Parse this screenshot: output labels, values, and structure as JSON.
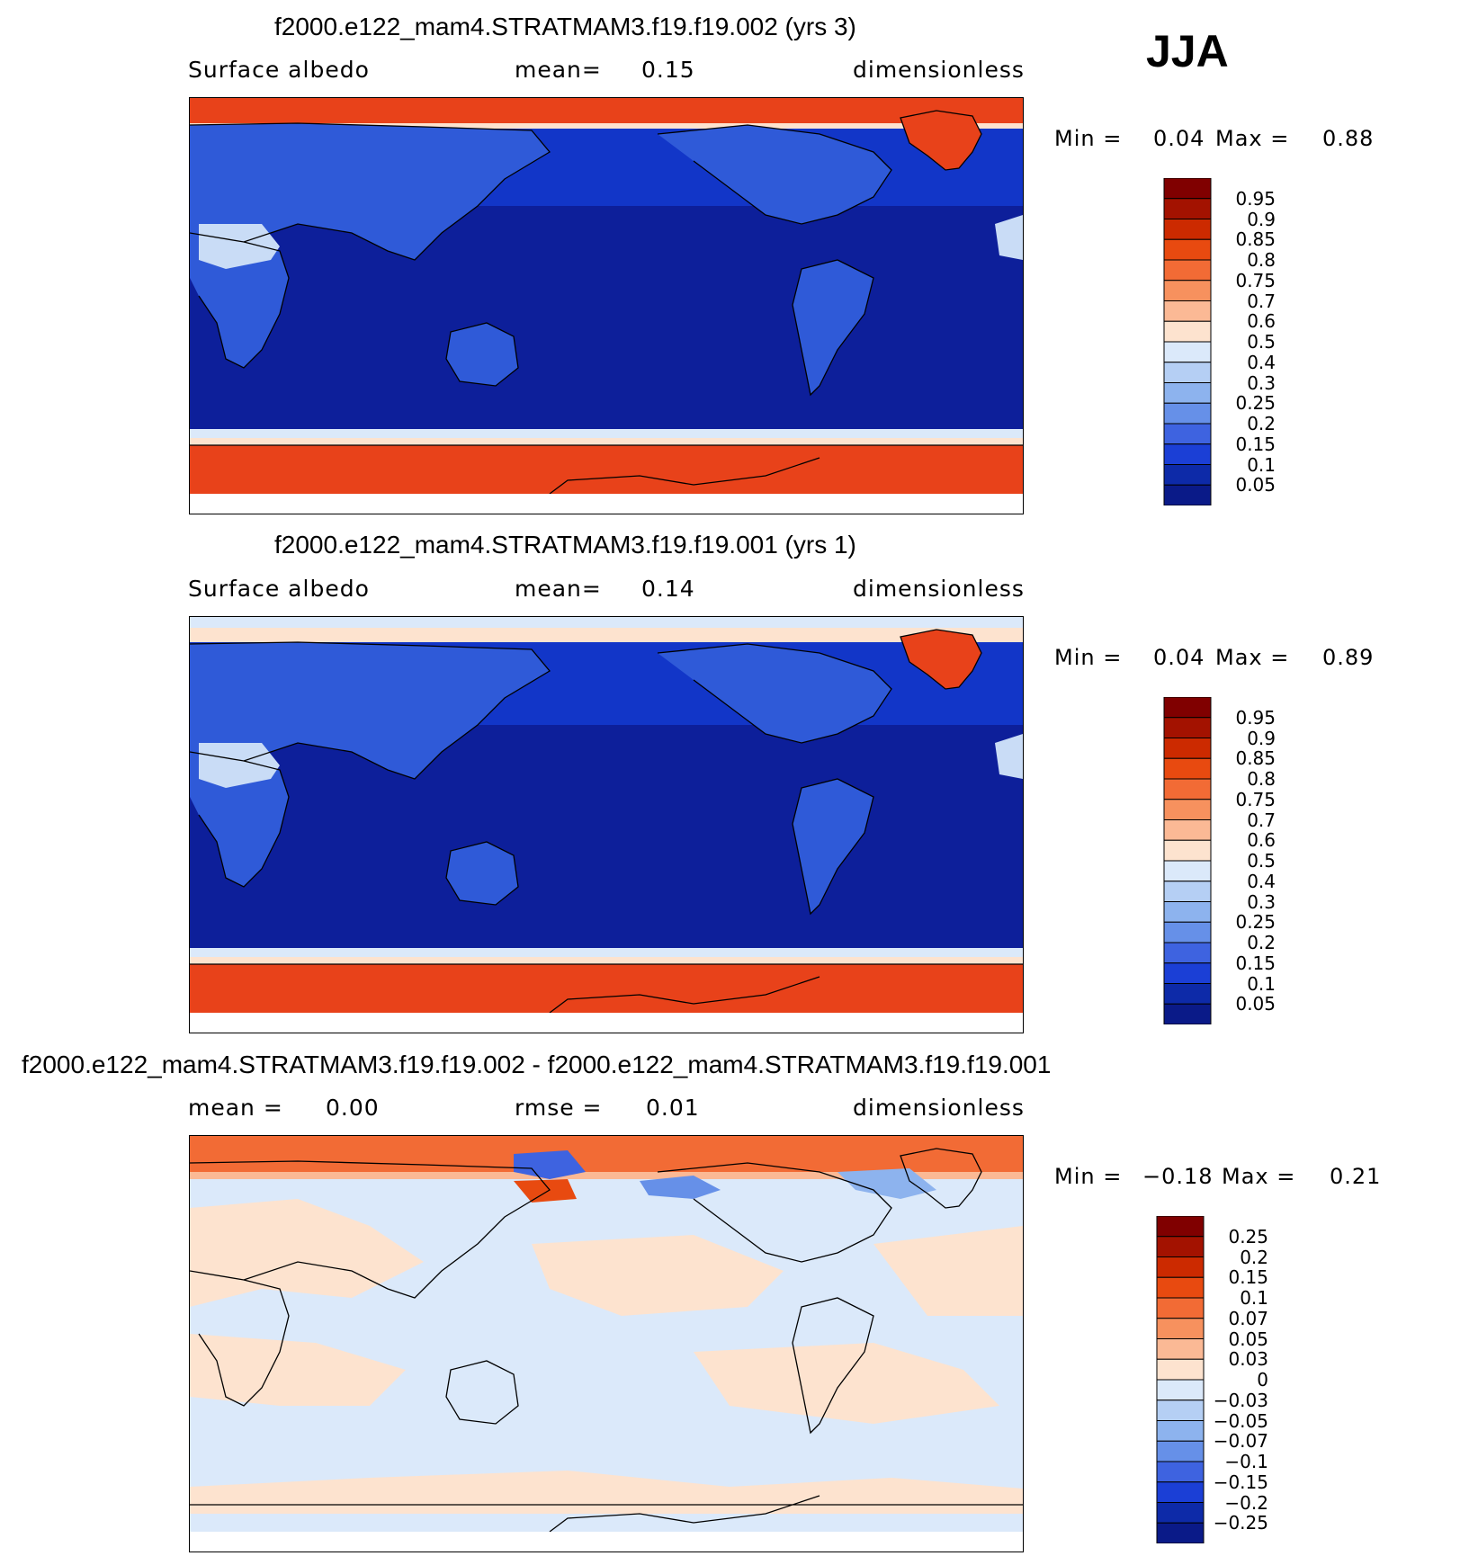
{
  "season": "JJA",
  "panels": [
    {
      "id": "p1",
      "title": "f2000.e122_mam4.STRATMAM3.f19.f19.002 (yrs 3)",
      "left_label": "Surface albedo",
      "center_label": "mean=",
      "center_value": "0.15",
      "right_label": "dimensionless",
      "min_label": "Min =",
      "min_value": "0.04",
      "max_label": "Max =",
      "max_value": "0.88",
      "colorbar_labels": [
        "0.95",
        "0.9",
        "0.85",
        "0.8",
        "0.75",
        "0.7",
        "0.6",
        "0.5",
        "0.4",
        "0.3",
        "0.25",
        "0.2",
        "0.15",
        "0.1",
        "0.05"
      ]
    },
    {
      "id": "p2",
      "title": "f2000.e122_mam4.STRATMAM3.f19.f19.001 (yrs 1)",
      "left_label": "Surface albedo",
      "center_label": "mean=",
      "center_value": "0.14",
      "right_label": "dimensionless",
      "min_label": "Min =",
      "min_value": "0.04",
      "max_label": "Max =",
      "max_value": "0.89",
      "colorbar_labels": [
        "0.95",
        "0.9",
        "0.85",
        "0.8",
        "0.75",
        "0.7",
        "0.6",
        "0.5",
        "0.4",
        "0.3",
        "0.25",
        "0.2",
        "0.15",
        "0.1",
        "0.05"
      ]
    },
    {
      "id": "p3",
      "title": "f2000.e122_mam4.STRATMAM3.f19.f19.002 - f2000.e122_mam4.STRATMAM3.f19.f19.001",
      "left_label": "mean =",
      "left_value": "0.00",
      "center_label": "rmse =",
      "center_value": "0.01",
      "right_label": "dimensionless",
      "min_label": "Min =",
      "min_value": "−0.18",
      "max_label": "Max =",
      "max_value": "0.21",
      "colorbar_labels": [
        "0.25",
        "0.2",
        "0.15",
        "0.1",
        "0.07",
        "0.05",
        "0.03",
        "0",
        "−0.03",
        "−0.05",
        "−0.07",
        "−0.1",
        "−0.15",
        "−0.2",
        "−0.25"
      ]
    }
  ],
  "colors": {
    "colorbar": [
      "#800000",
      "#a31200",
      "#cc2a00",
      "#e84a10",
      "#f26b35",
      "#f7915e",
      "#fbb995",
      "#fde3cf",
      "#dbe9fa",
      "#b5cff4",
      "#8db3ee",
      "#6690e8",
      "#3e63e0",
      "#1b3fd6",
      "#0d2aa8",
      "#0a1a88"
    ],
    "ocean_deep": "#0d1f9a",
    "ocean_mid": "#1236c8",
    "land": "#2f5ad8",
    "desert": "#c9dcf6",
    "ice": "#e8421a",
    "diff_pos": "#fde3cf",
    "diff_neg": "#dbe9fa"
  },
  "chart_data": [
    {
      "type": "heatmap",
      "title": "f2000.e122_mam4.STRATMAM3.f19.f19.002 (yrs 3)",
      "variable": "Surface albedo",
      "units": "dimensionless",
      "mean": 0.15,
      "min": 0.04,
      "max": 0.88,
      "levels": [
        0.05,
        0.1,
        0.15,
        0.2,
        0.25,
        0.3,
        0.4,
        0.5,
        0.6,
        0.7,
        0.75,
        0.8,
        0.85,
        0.9,
        0.95
      ]
    },
    {
      "type": "heatmap",
      "title": "f2000.e122_mam4.STRATMAM3.f19.f19.001 (yrs 1)",
      "variable": "Surface albedo",
      "units": "dimensionless",
      "mean": 0.14,
      "min": 0.04,
      "max": 0.89,
      "levels": [
        0.05,
        0.1,
        0.15,
        0.2,
        0.25,
        0.3,
        0.4,
        0.5,
        0.6,
        0.7,
        0.75,
        0.8,
        0.85,
        0.9,
        0.95
      ]
    },
    {
      "type": "heatmap",
      "title": "f2000.e122_mam4.STRATMAM3.f19.f19.002 - f2000.e122_mam4.STRATMAM3.f19.f19.001",
      "units": "dimensionless",
      "mean": 0.0,
      "rmse": 0.01,
      "min": -0.18,
      "max": 0.21,
      "levels": [
        -0.25,
        -0.2,
        -0.15,
        -0.1,
        -0.07,
        -0.05,
        -0.03,
        0,
        0.03,
        0.05,
        0.07,
        0.1,
        0.15,
        0.2,
        0.25
      ]
    }
  ]
}
